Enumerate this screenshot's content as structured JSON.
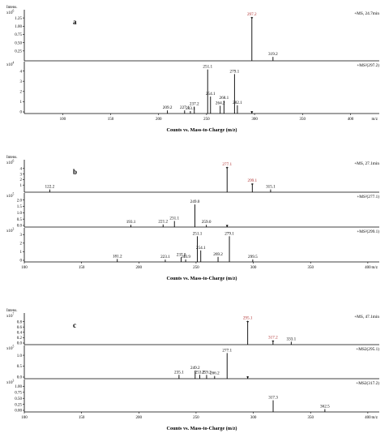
{
  "figure_label_positions_note": "",
  "chart_data": [
    {
      "type": "bar",
      "panel_label": "a",
      "header": "+MS, 24.7min",
      "ylabel": "Intens.",
      "yscale": "x10^6",
      "yticks": [
        "0.25",
        "0.50",
        "0.75",
        "1.00",
        "1.25"
      ],
      "xlim": [
        60,
        430
      ],
      "ylim": [
        0,
        1.4
      ],
      "highlight_color": "#b03030",
      "peaks": [
        {
          "x": 297.2,
          "y": 1.28,
          "label": "297.2",
          "hl": true
        },
        {
          "x": 319.2,
          "y": 0.07,
          "label": "319.2"
        }
      ]
    },
    {
      "type": "bar",
      "header": "+MS²(297.2)",
      "yscale": "x10^4",
      "yticks": [
        "0",
        "1",
        "2",
        "3",
        "4"
      ],
      "xticks": [
        "100",
        "150",
        "200",
        "250",
        "300",
        "350",
        "400"
      ],
      "xunit": "m/z",
      "xlim": [
        60,
        430
      ],
      "ylim": [
        0,
        4.6
      ],
      "peaks": [
        {
          "x": 209.2,
          "y": 0.15,
          "label": "209.2"
        },
        {
          "x": 227.1,
          "y": 0.15,
          "label": "227.1"
        },
        {
          "x": 233.1,
          "y": 0.08,
          "label": "233.1"
        },
        {
          "x": 237.2,
          "y": 0.5,
          "label": "237.2"
        },
        {
          "x": 251.1,
          "y": 4.15,
          "label": "251.1"
        },
        {
          "x": 254.1,
          "y": 1.5,
          "label": "254.1"
        },
        {
          "x": 264.2,
          "y": 0.6,
          "label": "264.2"
        },
        {
          "x": 268.1,
          "y": 1.1,
          "label": "268.1"
        },
        {
          "x": 279.1,
          "y": 3.7,
          "label": "279.1"
        },
        {
          "x": 282.1,
          "y": 0.65,
          "label": "282.1"
        },
        {
          "x": 297.2,
          "y": 0.08,
          "label": ""
        }
      ],
      "xlabel": "Counts vs. Mass-to-Charge (m/z)"
    },
    {
      "type": "bar",
      "panel_label": "b",
      "header": "+MS, 27.1min",
      "ylabel": "Intens.",
      "yscale": "x10^6",
      "yticks": [
        "1",
        "2",
        "3",
        "4"
      ],
      "xlim": [
        100,
        410
      ],
      "ylim": [
        0,
        5
      ],
      "peaks": [
        {
          "x": 122.2,
          "y": 0.2,
          "label": "122.2"
        },
        {
          "x": 277.1,
          "y": 4.3,
          "label": "277.1",
          "hl": true
        },
        {
          "x": 299.1,
          "y": 1.3,
          "label": "299.1",
          "hl": true
        },
        {
          "x": 315.1,
          "y": 0.2,
          "label": "315.1"
        }
      ]
    },
    {
      "type": "bar",
      "header": "+MS²(277.1)",
      "yscale": "x10^5",
      "yticks": [
        "0.0",
        "0.5",
        "1.0",
        "1.5",
        "2.0"
      ],
      "xlim": [
        100,
        410
      ],
      "ylim": [
        0,
        2.3
      ],
      "peaks": [
        {
          "x": 193.1,
          "y": 0.05,
          "label": "193.1"
        },
        {
          "x": 221.2,
          "y": 0.08,
          "label": "221.2"
        },
        {
          "x": 231.1,
          "y": 0.35,
          "label": "231.1"
        },
        {
          "x": 249.0,
          "y": 1.65,
          "label": "249.0"
        },
        {
          "x": 259.0,
          "y": 0.05,
          "label": "259.0"
        },
        {
          "x": 277.1,
          "y": 0.05,
          "label": ""
        }
      ]
    },
    {
      "type": "bar",
      "header": "+MS²(299.1)",
      "yscale": "x10^3",
      "yticks": [
        "0",
        "1",
        "2",
        "3"
      ],
      "xticks": [
        "100",
        "150",
        "200",
        "250",
        "300",
        "350",
        "400"
      ],
      "xunit": "m/z",
      "xlim": [
        100,
        410
      ],
      "ylim": [
        0,
        3.4
      ],
      "peaks": [
        {
          "x": 181.2,
          "y": 0.15,
          "label": "181.2"
        },
        {
          "x": 223.1,
          "y": 0.08,
          "label": "223.1"
        },
        {
          "x": 237.0,
          "y": 0.35,
          "label": "237.0"
        },
        {
          "x": 240.9,
          "y": 0.1,
          "label": "240.9"
        },
        {
          "x": 251.1,
          "y": 2.8,
          "label": "251.1"
        },
        {
          "x": 254.1,
          "y": 1.15,
          "label": "254.1"
        },
        {
          "x": 269.2,
          "y": 0.4,
          "label": "269.2"
        },
        {
          "x": 279.1,
          "y": 2.8,
          "label": "279.1"
        },
        {
          "x": 299.5,
          "y": 0.1,
          "label": "299.5"
        }
      ],
      "xlabel": "Counts vs. Mass-to-Charge (m/z)"
    },
    {
      "type": "bar",
      "panel_label": "c",
      "header": "+MS, 47.1min",
      "ylabel": "Intens.",
      "yscale": "x10^7",
      "yticks": [
        "0.0",
        "0.2",
        "0.4",
        "0.6",
        "0.8"
      ],
      "xlim": [
        100,
        410
      ],
      "ylim": [
        0,
        1.0
      ],
      "peaks": [
        {
          "x": 295.1,
          "y": 0.83,
          "label": "295.1",
          "hl": true
        },
        {
          "x": 317.2,
          "y": 0.1,
          "label": "317.2",
          "hl": true
        },
        {
          "x": 333.1,
          "y": 0.05,
          "label": "333.1"
        }
      ]
    },
    {
      "type": "bar",
      "header": "+MS2(295.1)",
      "yscale": "x10^5",
      "yticks": [
        "0.0",
        "0.5",
        "1.0"
      ],
      "xlim": [
        100,
        410
      ],
      "ylim": [
        0,
        1.3
      ],
      "peaks": [
        {
          "x": 235.1,
          "y": 0.1,
          "label": "235.1"
        },
        {
          "x": 249.2,
          "y": 0.3,
          "label": "249.2"
        },
        {
          "x": 253.2,
          "y": 0.1,
          "label": "253.2"
        },
        {
          "x": 259.2,
          "y": 0.1,
          "label": "259.2"
        },
        {
          "x": 266.2,
          "y": 0.05,
          "label": "266.2"
        },
        {
          "x": 277.1,
          "y": 1.1,
          "label": "277.1"
        },
        {
          "x": 295.1,
          "y": 0.04,
          "label": ""
        }
      ]
    },
    {
      "type": "bar",
      "header": "+MS2(317.2)",
      "yscale": "x10^3",
      "yticks": [
        "0.00",
        "0.25",
        "0.50",
        "0.75",
        "1.00"
      ],
      "xticks": [
        "100",
        "150",
        "200",
        "250",
        "300",
        "350",
        "400"
      ],
      "xunit": "m/z",
      "xlim": [
        100,
        410
      ],
      "ylim": [
        0,
        1.15
      ],
      "peaks": [
        {
          "x": 317.3,
          "y": 0.42,
          "label": "317.3"
        },
        {
          "x": 362.5,
          "y": 0.05,
          "label": "362.5"
        }
      ],
      "xlabel": "Counts vs. Mass-to-Charge (m/z)"
    }
  ]
}
